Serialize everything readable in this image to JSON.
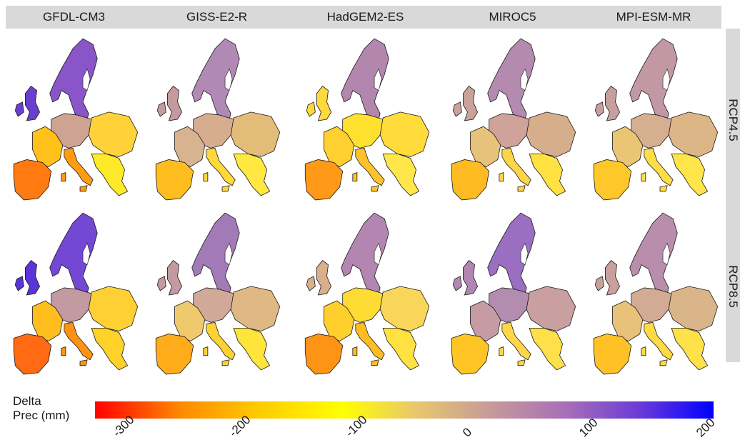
{
  "models": [
    "GFDL-CM3",
    "GISS-E2-R",
    "HadGEM2-ES",
    "MIROC5",
    "MPI-ESM-MR"
  ],
  "scenarios": [
    "RCP4.5",
    "RCP8.5"
  ],
  "legend": {
    "title_line1": "Delta",
    "title_line2": "Prec (mm)",
    "ticks": [
      "-300",
      "-200",
      "-100",
      "0",
      "100",
      "200"
    ],
    "tick_values": [
      -300,
      -200,
      -100,
      0,
      100,
      200
    ],
    "range": [
      -320,
      210
    ],
    "colors": [
      "#ff0000",
      "#ff8a00",
      "#ffc800",
      "#ffff00",
      "#e8c76e",
      "#c59a9a",
      "#a86fb8",
      "#6b3bd8",
      "#0000ff"
    ]
  },
  "panel_palettes": [
    [
      {
        "iberia": "#ff7a10",
        "france": "#ffc11a",
        "italy": "#ff9c12",
        "uk": "#6a3fd0",
        "scand": "#8a55c8",
        "central": "#cfa394",
        "east": "#ffd23a",
        "balkans": "#ffea2a"
      },
      {
        "iberia": "#ffbd20",
        "france": "#d8b390",
        "italy": "#ffd83a",
        "uk": "#c49a9e",
        "scand": "#b089b4",
        "central": "#d6ad8e",
        "east": "#e2bc78",
        "balkans": "#ffe840"
      },
      {
        "iberia": "#ff9a18",
        "france": "#ffd030",
        "italy": "#ffc22a",
        "uk": "#ffd83a",
        "scand": "#b386ae",
        "central": "#ffe02e",
        "east": "#ffdb3c",
        "balkans": "#ffe64a"
      },
      {
        "iberia": "#ffbb22",
        "france": "#e7c27a",
        "italy": "#ffd548",
        "uk": "#c9a29c",
        "scand": "#b48aae",
        "central": "#cfa39a",
        "east": "#d7ae8c",
        "balkans": "#ffe142"
      },
      {
        "iberia": "#ffc82a",
        "france": "#e9c574",
        "italy": "#ffdd45",
        "uk": "#c7a09e",
        "scand": "#c298a4",
        "central": "#d6ae90",
        "east": "#dcb686",
        "balkans": "#ffe44a"
      }
    ],
    [
      {
        "iberia": "#ff6a12",
        "france": "#ffbe1e",
        "italy": "#ff9214",
        "uk": "#5b34d8",
        "scand": "#7348d4",
        "central": "#c49aa2",
        "east": "#ffd034",
        "balkans": "#ffd22a"
      },
      {
        "iberia": "#ffac1a",
        "france": "#efca6c",
        "italy": "#ffd234",
        "uk": "#c29aa0",
        "scand": "#a37ab8",
        "central": "#d2a998",
        "east": "#dfb884",
        "balkans": "#ffe43c"
      },
      {
        "iberia": "#ff9316",
        "france": "#ffcf2e",
        "italy": "#ffbd24",
        "uk": "#d8b08a",
        "scand": "#b286b0",
        "central": "#ffdc34",
        "east": "#f7d65a",
        "balkans": "#ffe242"
      },
      {
        "iberia": "#ffc524",
        "france": "#c79ba4",
        "italy": "#ffd64a",
        "uk": "#b286b2",
        "scand": "#9a6ec0",
        "central": "#b48cb0",
        "east": "#c99fa0",
        "balkans": "#ffe04a"
      },
      {
        "iberia": "#ffc126",
        "france": "#e8c27a",
        "italy": "#ffda44",
        "uk": "#c9a19c",
        "scand": "#b98ead",
        "central": "#d3aa94",
        "east": "#dbb58a",
        "balkans": "#ffe24a"
      }
    ]
  ]
}
